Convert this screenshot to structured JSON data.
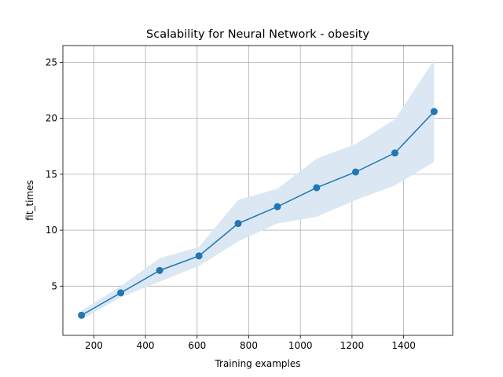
{
  "chart_data": {
    "type": "line",
    "title": "Scalability for Neural Network - obesity",
    "xlabel": "Training examples",
    "ylabel": "fit_times",
    "xlim": [
      80,
      1590
    ],
    "ylim": [
      0.6,
      26.5
    ],
    "xticks": [
      200,
      400,
      600,
      800,
      1000,
      1200,
      1400
    ],
    "yticks": [
      5,
      10,
      15,
      20,
      25
    ],
    "grid": true,
    "legend": "none",
    "x": [
      152,
      304,
      455,
      607,
      759,
      911,
      1063,
      1214,
      1366,
      1518
    ],
    "series": [
      {
        "mean": [
          2.4,
          4.4,
          6.4,
          7.7,
          10.6,
          12.1,
          13.8,
          15.2,
          16.9,
          20.6
        ],
        "lower": [
          2.0,
          4.0,
          5.4,
          6.8,
          9.0,
          10.6,
          11.2,
          12.7,
          14.0,
          16.1
        ],
        "upper": [
          2.8,
          5.0,
          7.5,
          8.5,
          12.7,
          13.7,
          16.4,
          17.7,
          19.9,
          25.2
        ],
        "color": "#1f77b4",
        "band_color": "#dbe7f3"
      }
    ]
  }
}
